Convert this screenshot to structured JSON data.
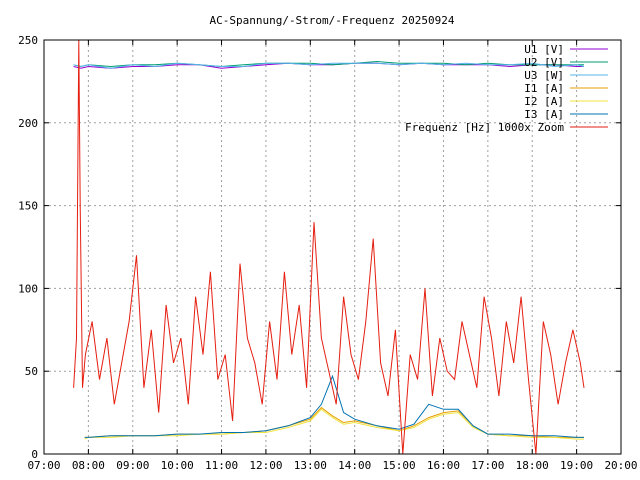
{
  "chart_data": {
    "type": "line",
    "title": "AC-Spannung/-Strom/-Frequenz 20250924",
    "xlabel": "",
    "ylabel": "",
    "x_ticks": [
      "07:00",
      "08:00",
      "09:00",
      "10:00",
      "11:00",
      "12:00",
      "13:00",
      "14:00",
      "15:00",
      "16:00",
      "17:00",
      "18:00",
      "19:00",
      "20:00"
    ],
    "xlim": [
      "07:00",
      "20:00"
    ],
    "ylim": [
      0,
      250
    ],
    "y_ticks": [
      0,
      50,
      100,
      150,
      200,
      250
    ],
    "grid": true,
    "legend_position": "top-right",
    "series": [
      {
        "name": "U1 [V]",
        "color": "#9400d3",
        "x": [
          "07:40",
          "07:50",
          "08:00",
          "08:30",
          "09:00",
          "09:30",
          "10:00",
          "10:30",
          "11:00",
          "11:30",
          "12:00",
          "12:30",
          "13:00",
          "13:30",
          "14:00",
          "14:30",
          "15:00",
          "15:30",
          "16:00",
          "16:30",
          "17:00",
          "17:30",
          "18:00",
          "18:30",
          "19:00",
          "19:10"
        ],
        "values": [
          234,
          233,
          234,
          233,
          234,
          234,
          235,
          235,
          233,
          234,
          235,
          236,
          235,
          235,
          236,
          236,
          235,
          236,
          235,
          235,
          235,
          234,
          235,
          235,
          234,
          234
        ]
      },
      {
        "name": "U2 [V]",
        "color": "#009e73",
        "x": [
          "07:40",
          "07:50",
          "08:00",
          "08:30",
          "09:00",
          "09:30",
          "10:00",
          "10:30",
          "11:00",
          "11:30",
          "12:00",
          "12:30",
          "13:00",
          "13:30",
          "14:00",
          "14:30",
          "15:00",
          "15:30",
          "16:00",
          "16:30",
          "17:00",
          "17:30",
          "18:00",
          "18:30",
          "19:00",
          "19:10"
        ],
        "values": [
          235,
          234,
          235,
          234,
          235,
          235,
          236,
          235,
          234,
          235,
          236,
          236,
          236,
          235,
          236,
          237,
          236,
          236,
          236,
          235,
          236,
          235,
          235,
          235,
          235,
          235
        ]
      },
      {
        "name": "U3 [W]",
        "color": "#56b4e9",
        "x": [
          "07:40",
          "07:50",
          "08:00",
          "08:30",
          "09:00",
          "09:30",
          "10:00",
          "10:30",
          "11:00",
          "11:30",
          "12:00",
          "12:30",
          "13:00",
          "13:30",
          "14:00",
          "14:30",
          "15:00",
          "15:30",
          "16:00",
          "16:30",
          "17:00",
          "17:30",
          "18:00",
          "18:30",
          "19:00",
          "19:10"
        ],
        "values": [
          235,
          234,
          235,
          233,
          235,
          234,
          236,
          235,
          234,
          234,
          236,
          236,
          235,
          236,
          236,
          236,
          235,
          236,
          235,
          236,
          235,
          235,
          236,
          234,
          235,
          234
        ]
      },
      {
        "name": "I1 [A]",
        "color": "#e69f00",
        "x": [
          "07:55",
          "08:00",
          "08:30",
          "09:00",
          "09:30",
          "10:00",
          "10:30",
          "11:00",
          "11:30",
          "12:00",
          "12:30",
          "13:00",
          "13:15",
          "13:30",
          "13:45",
          "14:00",
          "14:30",
          "15:00",
          "15:20",
          "15:40",
          "16:00",
          "16:20",
          "16:40",
          "17:00",
          "17:30",
          "18:00",
          "18:30",
          "19:00",
          "19:10"
        ],
        "values": [
          10,
          10,
          11,
          11,
          11,
          12,
          12,
          12,
          13,
          14,
          17,
          21,
          28,
          23,
          19,
          20,
          17,
          14,
          17,
          22,
          25,
          26,
          17,
          12,
          11,
          11,
          10,
          10,
          10
        ]
      },
      {
        "name": "I2 [A]",
        "color": "#f0e442",
        "x": [
          "07:55",
          "08:00",
          "08:30",
          "09:00",
          "09:30",
          "10:00",
          "10:30",
          "11:00",
          "11:30",
          "12:00",
          "12:30",
          "13:00",
          "13:15",
          "13:30",
          "13:45",
          "14:00",
          "14:30",
          "15:00",
          "15:20",
          "15:40",
          "16:00",
          "16:20",
          "16:40",
          "17:00",
          "17:30",
          "18:00",
          "18:30",
          "19:00",
          "19:10"
        ],
        "values": [
          9,
          10,
          10,
          11,
          11,
          11,
          12,
          12,
          13,
          13,
          16,
          20,
          27,
          22,
          18,
          19,
          16,
          14,
          16,
          21,
          24,
          25,
          16,
          12,
          11,
          10,
          10,
          9,
          9
        ]
      },
      {
        "name": "I3 [A]",
        "color": "#0072b2",
        "x": [
          "07:55",
          "08:00",
          "08:30",
          "09:00",
          "09:30",
          "10:00",
          "10:30",
          "11:00",
          "11:30",
          "12:00",
          "12:30",
          "13:00",
          "13:15",
          "13:30",
          "13:45",
          "14:00",
          "14:30",
          "15:00",
          "15:20",
          "15:40",
          "16:00",
          "16:20",
          "16:40",
          "17:00",
          "17:30",
          "18:00",
          "18:30",
          "19:00",
          "19:10"
        ],
        "values": [
          10,
          10,
          11,
          11,
          11,
          12,
          12,
          13,
          13,
          14,
          17,
          22,
          30,
          47,
          25,
          21,
          17,
          15,
          18,
          30,
          27,
          27,
          17,
          12,
          12,
          11,
          11,
          10,
          10
        ]
      },
      {
        "name": "Frequenz [Hz] 1000x Zoom",
        "color": "#e51e10",
        "x": [
          "07:40",
          "07:44",
          "07:47",
          "07:49",
          "07:52",
          "07:56",
          "08:05",
          "08:15",
          "08:25",
          "08:35",
          "08:45",
          "08:55",
          "09:05",
          "09:15",
          "09:25",
          "09:35",
          "09:45",
          "09:55",
          "10:05",
          "10:15",
          "10:25",
          "10:35",
          "10:45",
          "10:55",
          "11:05",
          "11:15",
          "11:25",
          "11:35",
          "11:45",
          "11:55",
          "12:05",
          "12:15",
          "12:25",
          "12:35",
          "12:45",
          "12:55",
          "13:05",
          "13:15",
          "13:25",
          "13:35",
          "13:45",
          "13:55",
          "14:05",
          "14:15",
          "14:25",
          "14:35",
          "14:45",
          "14:55",
          "15:05",
          "15:15",
          "15:25",
          "15:35",
          "15:45",
          "15:55",
          "16:05",
          "16:15",
          "16:25",
          "16:35",
          "16:45",
          "16:55",
          "17:05",
          "17:15",
          "17:25",
          "17:35",
          "17:45",
          "17:55",
          "18:05",
          "18:15",
          "18:25",
          "18:35",
          "18:45",
          "18:55",
          "19:05",
          "19:10"
        ],
        "values": [
          40,
          70,
          250,
          150,
          40,
          60,
          80,
          45,
          70,
          30,
          55,
          80,
          120,
          40,
          75,
          25,
          90,
          55,
          70,
          30,
          95,
          60,
          110,
          45,
          60,
          20,
          115,
          70,
          55,
          30,
          80,
          45,
          110,
          60,
          90,
          40,
          140,
          70,
          50,
          30,
          95,
          60,
          45,
          80,
          130,
          55,
          35,
          75,
          0,
          60,
          45,
          100,
          35,
          70,
          50,
          45,
          80,
          60,
          40,
          95,
          70,
          35,
          80,
          55,
          95,
          45,
          0,
          80,
          60,
          30,
          55,
          75,
          55,
          40
        ]
      }
    ]
  }
}
